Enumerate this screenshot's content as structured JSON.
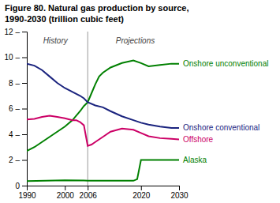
{
  "chart_data": {
    "type": "line",
    "title": "Figure 80. Natural gas production by source,",
    "subtitle": "1990-2030 (trillion cubic feet)",
    "xlim": [
      1990,
      2030
    ],
    "xticks": [
      1990,
      2000,
      2006,
      2020,
      2030
    ],
    "ylim": [
      0,
      12
    ],
    "yticks": [
      0,
      {
        "value": 2,
        "label": "2 –"
      },
      {
        "value": 4,
        "label": "4 –"
      },
      {
        "value": 6,
        "label": "6 –"
      },
      {
        "value": 8,
        "label": "8 –"
      },
      {
        "value": 10,
        "label": "10 –"
      },
      {
        "value": 12,
        "label": "12 –"
      }
    ],
    "series": [
      {
        "name": "Onshore unconventional",
        "color": "#008000",
        "x": [
          1990,
          1992,
          1994,
          1996,
          1998,
          2000,
          2002,
          2004,
          2005,
          2006,
          2007,
          2008,
          2009,
          2010,
          2012,
          2015,
          2018,
          2020,
          2022,
          2025,
          2028,
          2030
        ],
        "values": [
          2.7,
          3.0,
          3.4,
          3.8,
          4.2,
          4.6,
          5.1,
          5.8,
          6.2,
          6.5,
          7.2,
          7.9,
          8.5,
          8.8,
          9.2,
          9.55,
          9.75,
          9.55,
          9.3,
          9.4,
          9.5,
          9.5
        ]
      },
      {
        "name": "Onshore conventional",
        "color": "#1a237e",
        "x": [
          1990,
          1992,
          1994,
          1996,
          1998,
          2000,
          2002,
          2004,
          2005,
          2006,
          2008,
          2010,
          2012,
          2015,
          2018,
          2020,
          2022,
          2025,
          2028,
          2030
        ],
        "values": [
          9.5,
          9.35,
          9.0,
          8.5,
          8.0,
          7.6,
          7.3,
          7.0,
          6.8,
          6.5,
          6.25,
          6.1,
          5.8,
          5.4,
          5.1,
          4.9,
          4.75,
          4.6,
          4.5,
          4.5
        ]
      },
      {
        "name": "Offshore",
        "color": "#cc0066",
        "x": [
          1990,
          1992,
          1994,
          1996,
          1998,
          2000,
          2002,
          2003,
          2004,
          2005,
          2006,
          2007,
          2008,
          2010,
          2012,
          2015,
          2018,
          2020,
          2022,
          2025,
          2028,
          2030
        ],
        "values": [
          5.15,
          5.2,
          5.35,
          5.45,
          5.35,
          5.25,
          5.1,
          5.1,
          4.95,
          4.7,
          3.1,
          3.2,
          3.4,
          3.8,
          4.2,
          4.45,
          4.35,
          4.1,
          3.85,
          3.7,
          3.65,
          3.6
        ]
      },
      {
        "name": "Alaska",
        "color": "#008000",
        "x": [
          1990,
          1995,
          2000,
          2005,
          2006,
          2016,
          2017,
          2018,
          2019,
          2020,
          2022,
          2025,
          2028,
          2030
        ],
        "values": [
          0.35,
          0.38,
          0.42,
          0.4,
          0.38,
          0.38,
          0.38,
          0.38,
          0.5,
          2.0,
          2.0,
          2.0,
          2.0,
          2.0
        ]
      }
    ],
    "reference_lines": [
      {
        "x": 2006
      }
    ],
    "annotations": [
      {
        "text": "History",
        "x": 1997.5,
        "y": 11.6
      },
      {
        "text": "Projections",
        "x": 2018.5,
        "y": 11.6
      }
    ]
  }
}
